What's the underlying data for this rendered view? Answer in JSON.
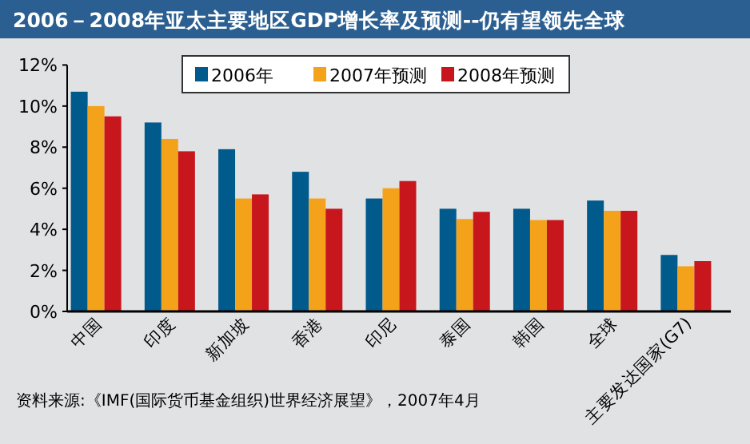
{
  "chart_data": {
    "type": "bar",
    "title": "2006－2008年亚太主要地区GDP增长率及预测--仍有望领先全球",
    "categories": [
      "中国",
      "印度",
      "新加坡",
      "香港",
      "印尼",
      "泰国",
      "韩国",
      "全球",
      "主要发达国家(G7)"
    ],
    "series": [
      {
        "name": "2006年",
        "color": "#005a8c",
        "values": [
          10.7,
          9.2,
          7.9,
          6.8,
          5.5,
          5.0,
          5.0,
          5.4,
          2.75
        ]
      },
      {
        "name": "2007年预测",
        "color": "#f5a21b",
        "values": [
          10.0,
          8.4,
          5.5,
          5.5,
          6.0,
          4.5,
          4.45,
          4.9,
          2.2
        ]
      },
      {
        "name": "2008年预测",
        "color": "#c8161d",
        "values": [
          9.5,
          7.8,
          5.7,
          5.0,
          6.35,
          4.85,
          4.45,
          4.9,
          2.45
        ]
      }
    ],
    "ylim": [
      0,
      12
    ],
    "yticks": [
      {
        "value": 0,
        "label": "0%"
      },
      {
        "value": 2,
        "label": "2%"
      },
      {
        "value": 4,
        "label": "4%"
      },
      {
        "value": 6,
        "label": "6%"
      },
      {
        "value": 8,
        "label": "8%"
      },
      {
        "value": 10,
        "label": "10%"
      },
      {
        "value": 12,
        "label": "12%"
      }
    ],
    "legend": "top right",
    "annotations": [
      "资料来源:《IMF(国际货币基金组织)世界经济展望》，2007年4月"
    ]
  }
}
